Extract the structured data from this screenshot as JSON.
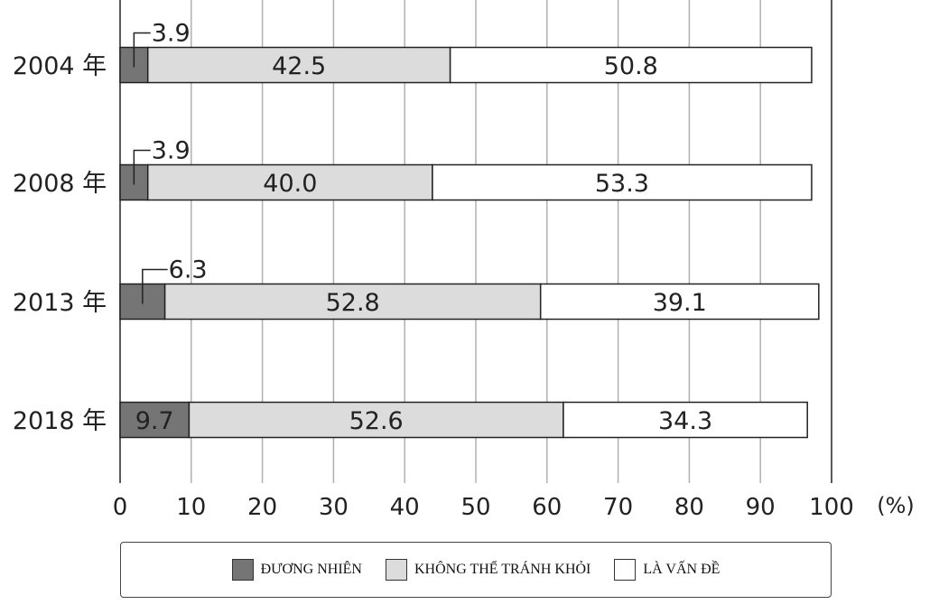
{
  "chart_data": {
    "type": "bar",
    "orientation": "horizontal",
    "stacked": true,
    "categories": [
      "2004 年",
      "2008 年",
      "2013 年",
      "2018 年"
    ],
    "series": [
      {
        "name": "ĐƯƠNG NHIÊN",
        "values": [
          3.9,
          3.9,
          6.3,
          9.7
        ],
        "color": "#757575"
      },
      {
        "name": "KHÔNG THỂ TRÁNH KHỎI",
        "values": [
          42.5,
          40.0,
          52.8,
          52.6
        ],
        "color": "#dcdcdc"
      },
      {
        "name": "LÀ VẤN ĐỀ",
        "values": [
          50.8,
          53.3,
          39.1,
          34.3
        ],
        "color": "#ffffff"
      }
    ],
    "data_labels": [
      [
        "3.9",
        "42.5",
        "50.8"
      ],
      [
        "3.9",
        "40.0",
        "53.3"
      ],
      [
        "6.3",
        "52.8",
        "39.1"
      ],
      [
        "9.7",
        "52.6",
        "34.3"
      ]
    ],
    "x_ticks": [
      "0",
      "10",
      "20",
      "30",
      "40",
      "50",
      "60",
      "70",
      "80",
      "90",
      "100"
    ],
    "xlim": [
      0,
      100
    ],
    "unit": "(%)",
    "grid": true,
    "legend_position": "bottom"
  },
  "legend": {
    "items": [
      {
        "label": "ĐƯƠNG NHIÊN",
        "color": "#757575"
      },
      {
        "label": "KHÔNG THỂ TRÁNH KHỎI",
        "color": "#dcdcdc"
      },
      {
        "label": "LÀ VẤN ĐỀ",
        "color": "#ffffff"
      }
    ]
  }
}
